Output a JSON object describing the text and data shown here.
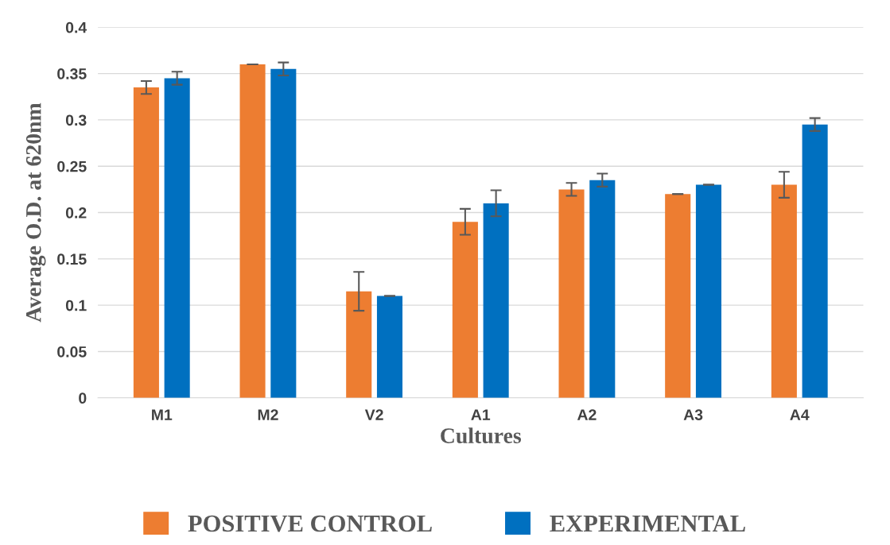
{
  "chart_data": {
    "type": "bar",
    "xlabel": "Cultures",
    "ylabel": "Average O.D. at 620nm",
    "categories": [
      "M1",
      "M2",
      "V2",
      "A1",
      "A2",
      "A3",
      "A4"
    ],
    "series": [
      {
        "name": "POSITIVE CONTROL",
        "color": "#ed7d31",
        "values": [
          0.335,
          0.36,
          0.115,
          0.19,
          0.225,
          0.22,
          0.23
        ],
        "errors": [
          0.007,
          0,
          0.021,
          0.014,
          0.007,
          0,
          0.014
        ]
      },
      {
        "name": "EXPERIMENTAL",
        "color": "#0070c0",
        "values": [
          0.345,
          0.355,
          0.11,
          0.21,
          0.235,
          0.23,
          0.295
        ],
        "errors": [
          0.007,
          0.007,
          0,
          0.014,
          0.007,
          0,
          0.007
        ]
      }
    ],
    "ylim": [
      0,
      0.4
    ],
    "yticks": [
      0,
      0.05,
      0.1,
      0.15,
      0.2,
      0.25,
      0.3,
      0.35,
      0.4
    ],
    "grid": "y",
    "legend": "bottom"
  }
}
